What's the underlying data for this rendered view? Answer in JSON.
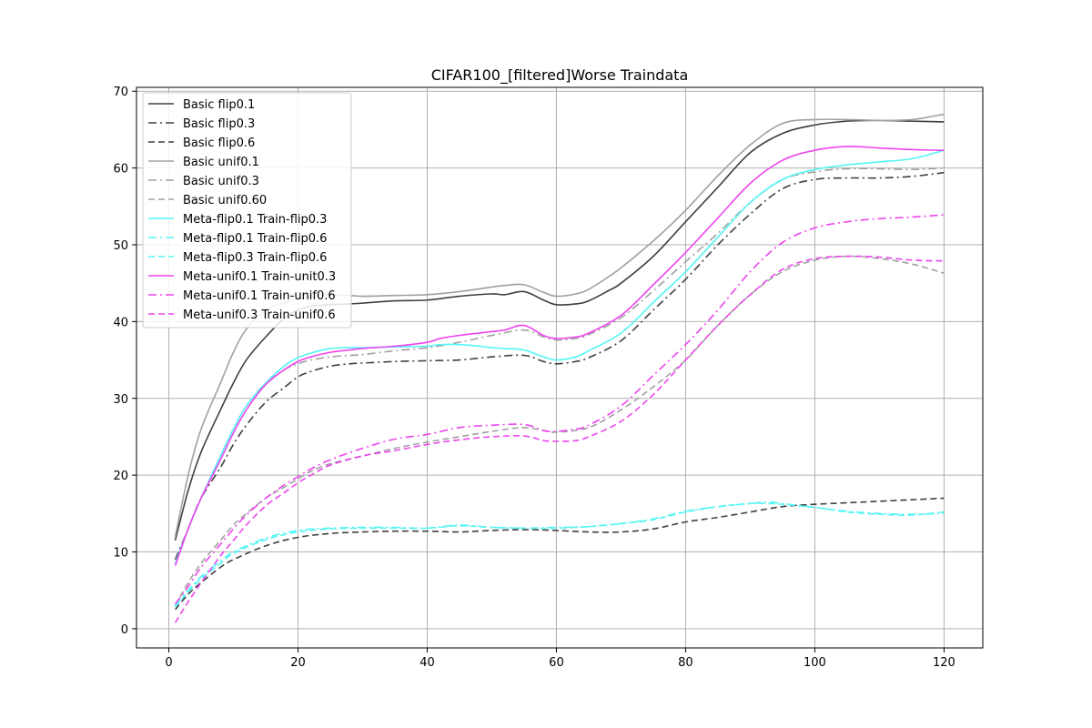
{
  "chart_data": {
    "type": "line",
    "title": "CIFAR100_[filtered]Worse Traindata",
    "xlabel": "",
    "ylabel": "",
    "xlim": [
      -5,
      126
    ],
    "ylim": [
      -2.5,
      70.5
    ],
    "xticks": [
      0,
      20,
      40,
      60,
      80,
      100,
      120
    ],
    "yticks": [
      0,
      10,
      20,
      30,
      40,
      50,
      60,
      70
    ],
    "grid": true,
    "legend_position": "upper-left",
    "series": [
      {
        "name": "Basic flip0.1",
        "color": "#404040",
        "dash": "solid",
        "x": [
          1,
          3,
          5,
          8,
          10,
          12,
          15,
          18,
          20,
          22,
          25,
          28,
          30,
          35,
          40,
          45,
          50,
          52,
          55,
          58,
          60,
          63,
          65,
          68,
          70,
          75,
          80,
          85,
          90,
          95,
          100,
          105,
          110,
          115,
          120
        ],
        "y": [
          11.5,
          18,
          23,
          28.5,
          32,
          35,
          38,
          40.5,
          41.5,
          42,
          42.2,
          42.3,
          42.4,
          42.7,
          42.8,
          43.3,
          43.6,
          43.5,
          43.9,
          42.8,
          42.2,
          42.3,
          42.7,
          44,
          45,
          48.5,
          53,
          57.5,
          62,
          64.5,
          65.6,
          66.1,
          66.2,
          66.1,
          66
        ]
      },
      {
        "name": "Basic flip0.3",
        "color": "#404040",
        "dash": "dashdot",
        "x": [
          1,
          3,
          5,
          8,
          10,
          12,
          15,
          18,
          20,
          22,
          25,
          28,
          30,
          35,
          40,
          45,
          50,
          55,
          58,
          60,
          63,
          65,
          70,
          75,
          80,
          85,
          90,
          95,
          100,
          105,
          110,
          115,
          120
        ],
        "y": [
          9,
          13,
          17,
          21,
          24,
          26.5,
          29.5,
          31.5,
          32.8,
          33.5,
          34.2,
          34.5,
          34.6,
          34.8,
          34.9,
          35,
          35.4,
          35.6,
          34.8,
          34.5,
          34.8,
          35.3,
          37.5,
          41.5,
          45.5,
          50,
          54,
          57.3,
          58.5,
          58.7,
          58.7,
          58.9,
          59.4
        ]
      },
      {
        "name": "Basic flip0.6",
        "color": "#404040",
        "dash": "dashed",
        "x": [
          1,
          3,
          5,
          8,
          10,
          15,
          20,
          25,
          30,
          35,
          40,
          45,
          50,
          55,
          60,
          65,
          70,
          75,
          80,
          85,
          90,
          95,
          100,
          105,
          110,
          115,
          120
        ],
        "y": [
          2.5,
          4.5,
          6,
          8,
          9,
          10.8,
          11.9,
          12.4,
          12.6,
          12.7,
          12.7,
          12.6,
          12.8,
          12.9,
          12.8,
          12.6,
          12.6,
          13,
          13.9,
          14.5,
          15.2,
          15.9,
          16.2,
          16.4,
          16.6,
          16.8,
          17
        ]
      },
      {
        "name": "Basic unif0.1",
        "color": "#a0a0a0",
        "dash": "solid",
        "x": [
          1,
          3,
          5,
          8,
          10,
          12,
          15,
          18,
          20,
          22,
          25,
          28,
          30,
          35,
          40,
          45,
          50,
          52,
          55,
          58,
          60,
          63,
          65,
          68,
          70,
          75,
          80,
          85,
          90,
          95,
          100,
          105,
          110,
          115,
          120
        ],
        "y": [
          12,
          20,
          26,
          32,
          36,
          39,
          41.5,
          42.5,
          43,
          43.3,
          43.5,
          43.4,
          43.3,
          43.4,
          43.5,
          43.9,
          44.5,
          44.7,
          44.8,
          43.8,
          43.3,
          43.6,
          44.2,
          45.8,
          47,
          50.5,
          54.5,
          59,
          63,
          65.8,
          66.3,
          66.3,
          66.2,
          66.3,
          67
        ]
      },
      {
        "name": "Basic unif0.3",
        "color": "#a0a0a0",
        "dash": "dashdot",
        "x": [
          1,
          3,
          5,
          8,
          10,
          12,
          15,
          18,
          20,
          22,
          25,
          28,
          30,
          35,
          40,
          45,
          50,
          55,
          58,
          60,
          63,
          65,
          70,
          75,
          80,
          85,
          90,
          95,
          100,
          105,
          110,
          115,
          120
        ],
        "y": [
          8.5,
          13,
          17,
          22.5,
          26,
          29,
          32,
          33.8,
          34.5,
          35,
          35.4,
          35.6,
          35.7,
          36.2,
          36.6,
          37.3,
          38.2,
          38.9,
          38,
          37.6,
          37.8,
          38.3,
          40.5,
          44,
          47.8,
          51.5,
          55.5,
          58.5,
          59.5,
          59.9,
          59.9,
          59.8,
          60
        ]
      },
      {
        "name": "Basic unif0.60",
        "color": "#a0a0a0",
        "dash": "dashed",
        "x": [
          1,
          3,
          5,
          8,
          10,
          12,
          15,
          18,
          20,
          22,
          25,
          30,
          35,
          40,
          45,
          50,
          55,
          58,
          60,
          65,
          70,
          75,
          80,
          85,
          90,
          95,
          100,
          105,
          110,
          115,
          120
        ],
        "y": [
          3,
          6,
          8.5,
          11.5,
          13.5,
          15,
          17,
          18.5,
          19.5,
          20.5,
          21.5,
          22.5,
          23.5,
          24.3,
          25,
          25.7,
          26.2,
          25.8,
          25.6,
          26.2,
          28.5,
          31.5,
          35,
          39.5,
          43.5,
          46.5,
          48,
          48.5,
          48.2,
          47.5,
          46.3
        ]
      },
      {
        "name": "Meta-flip0.1 Train-flip0.3",
        "color": "#55f5f5",
        "dash": "solid",
        "x": [
          1,
          3,
          5,
          8,
          10,
          12,
          15,
          18,
          20,
          22,
          25,
          28,
          30,
          35,
          40,
          42,
          45,
          48,
          50,
          52,
          55,
          58,
          60,
          63,
          65,
          70,
          75,
          80,
          85,
          90,
          95,
          100,
          105,
          110,
          115,
          120
        ],
        "y": [
          8.5,
          13,
          17,
          22.5,
          26,
          29,
          32,
          34.3,
          35.3,
          35.9,
          36.5,
          36.6,
          36.6,
          36.7,
          36.8,
          37,
          37,
          36.8,
          36.6,
          36.5,
          36.3,
          35.4,
          35,
          35.4,
          36.2,
          38.5,
          42.5,
          46.5,
          51,
          55.5,
          58.5,
          59.8,
          60.4,
          60.8,
          61.2,
          62.3
        ]
      },
      {
        "name": "Meta-flip0.1 Train-flip0.6",
        "color": "#55f5f5",
        "dash": "dashdot",
        "x": [
          1,
          3,
          5,
          8,
          10,
          15,
          20,
          25,
          30,
          35,
          40,
          45,
          50,
          55,
          60,
          65,
          70,
          75,
          80,
          85,
          90,
          93,
          95,
          100,
          105,
          110,
          115,
          120
        ],
        "y": [
          3,
          5,
          6.8,
          8.8,
          10,
          11.8,
          12.8,
          13.1,
          13.2,
          13.2,
          13.1,
          13.5,
          13.2,
          13.1,
          13.2,
          13.3,
          13.7,
          14.3,
          15.3,
          15.9,
          16.3,
          16.5,
          16.3,
          15.8,
          15.3,
          15,
          14.9,
          15
        ]
      },
      {
        "name": "Meta-flip0.3 Train-flip0.6",
        "color": "#55f5f5",
        "dash": "dashed",
        "x": [
          1,
          3,
          5,
          8,
          10,
          15,
          20,
          25,
          30,
          35,
          40,
          45,
          50,
          55,
          60,
          65,
          70,
          75,
          80,
          85,
          90,
          93,
          95,
          100,
          105,
          110,
          115,
          120
        ],
        "y": [
          2.8,
          4.8,
          6.5,
          8.5,
          9.8,
          11.6,
          12.6,
          13,
          13.1,
          13.1,
          13.1,
          13.4,
          13.2,
          13.1,
          13.1,
          13.3,
          13.7,
          14.2,
          15.2,
          15.9,
          16.3,
          16.3,
          16.2,
          15.8,
          15.2,
          14.9,
          14.8,
          15.2
        ]
      },
      {
        "name": "Meta-unif0.1 Train-unit0.3",
        "color": "#ee44ee",
        "dash": "solid",
        "x": [
          1,
          3,
          5,
          8,
          10,
          12,
          15,
          18,
          20,
          22,
          25,
          28,
          30,
          35,
          40,
          42,
          45,
          48,
          50,
          52,
          55,
          58,
          60,
          63,
          65,
          70,
          75,
          80,
          85,
          90,
          95,
          100,
          105,
          110,
          115,
          120
        ],
        "y": [
          8.2,
          13,
          17,
          22,
          25.5,
          28.5,
          31.8,
          33.8,
          34.8,
          35.4,
          36,
          36.3,
          36.5,
          36.8,
          37.3,
          37.8,
          38.2,
          38.5,
          38.7,
          38.9,
          39.5,
          38.2,
          37.8,
          38,
          38.5,
          40.8,
          44.8,
          49,
          53.5,
          58,
          61,
          62.3,
          62.8,
          62.6,
          62.4,
          62.3
        ]
      },
      {
        "name": "Meta-unif0.1 Train-unif0.6",
        "color": "#ee44ee",
        "dash": "dashdot",
        "x": [
          1,
          3,
          5,
          8,
          10,
          12,
          15,
          18,
          20,
          22,
          25,
          30,
          35,
          40,
          45,
          50,
          55,
          58,
          60,
          63,
          65,
          70,
          75,
          80,
          85,
          90,
          95,
          100,
          105,
          110,
          115,
          120
        ],
        "y": [
          3.2,
          5.5,
          8,
          11,
          13,
          14.8,
          17,
          18.8,
          19.8,
          20.8,
          22,
          23.5,
          24.7,
          25.3,
          26.2,
          26.5,
          26.6,
          25.8,
          25.7,
          26,
          26.5,
          29,
          33,
          37,
          41.5,
          46.5,
          50.3,
          52.2,
          53,
          53.4,
          53.6,
          53.9
        ]
      },
      {
        "name": "Meta-unif0.3 Train-unif0.6",
        "color": "#ee44ee",
        "dash": "dashed",
        "x": [
          1,
          3,
          5,
          8,
          10,
          12,
          15,
          18,
          20,
          22,
          25,
          30,
          35,
          40,
          45,
          50,
          55,
          58,
          60,
          63,
          65,
          70,
          75,
          80,
          85,
          90,
          95,
          100,
          105,
          110,
          115,
          120
        ],
        "y": [
          0.8,
          3.5,
          6,
          9.5,
          11.5,
          13.5,
          16,
          17.8,
          19,
          20,
          21.3,
          22.5,
          23.2,
          24,
          24.6,
          25,
          25.1,
          24.5,
          24.4,
          24.5,
          25,
          27,
          30.5,
          35,
          39.5,
          43.5,
          46.8,
          48.2,
          48.5,
          48.4,
          48,
          47.9
        ]
      }
    ]
  }
}
